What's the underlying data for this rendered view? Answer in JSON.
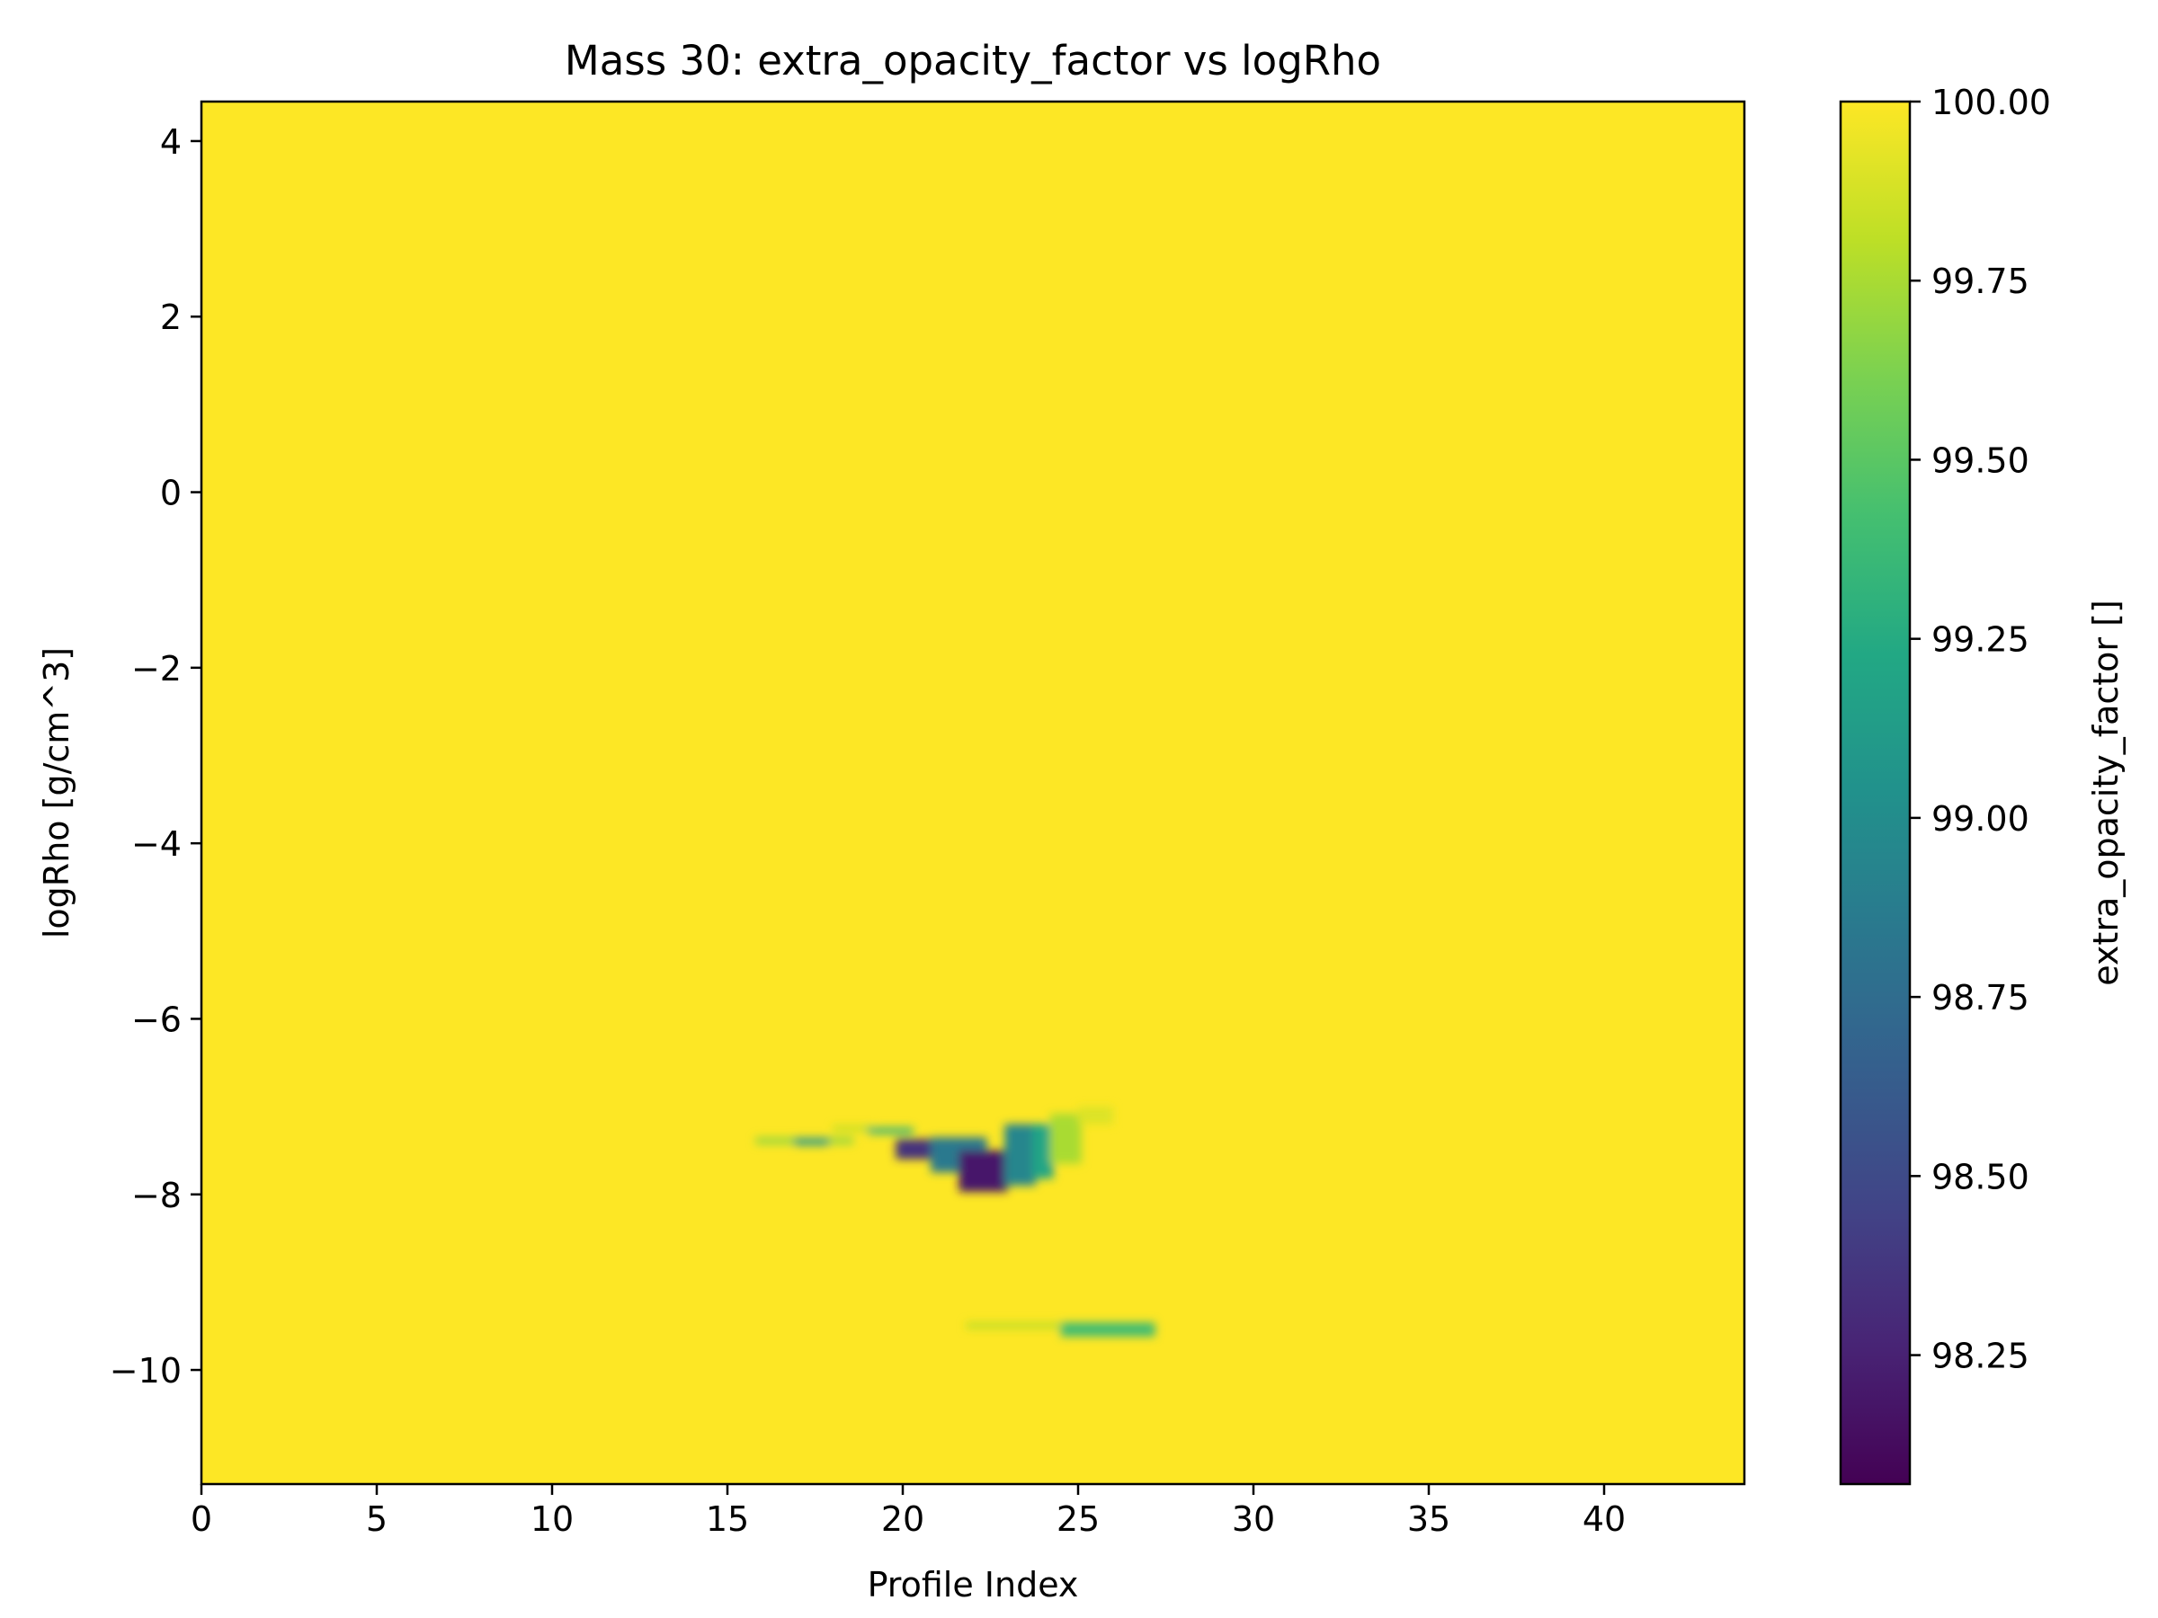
{
  "chart_data": {
    "type": "heatmap",
    "title": "Mass 30: extra_opacity_factor vs logRho",
    "xlabel": "Profile Index",
    "ylabel": "logRho [g/cm^3]",
    "xlim": [
      0,
      44
    ],
    "ylim": [
      -11.3,
      4.45
    ],
    "x_ticks": [
      0,
      5,
      10,
      15,
      20,
      25,
      30,
      35,
      40
    ],
    "y_ticks": [
      4,
      2,
      0,
      -2,
      -4,
      -6,
      -8,
      -10
    ],
    "y_tick_labels": [
      "4",
      "2",
      "0",
      "−2",
      "−4",
      "−6",
      "−8",
      "−10"
    ],
    "grid": false,
    "colormap": "viridis",
    "colorbar": {
      "label": "extra_opacity_factor []",
      "range": [
        98.07,
        100.0
      ],
      "ticks": [
        100.0,
        99.75,
        99.5,
        99.25,
        99.0,
        98.75,
        98.5,
        98.25
      ],
      "tick_labels": [
        "100.00",
        "99.75",
        "99.50",
        "99.25",
        "99.00",
        "98.75",
        "98.50",
        "98.25"
      ]
    },
    "background_value": 100.0,
    "features": [
      {
        "x": [
          15.8,
          18.6
        ],
        "y": [
          -7.43,
          -7.35
        ],
        "value": 99.7
      },
      {
        "x": [
          16.9,
          17.9
        ],
        "y": [
          -7.44,
          -7.36
        ],
        "value": 99.1
      },
      {
        "x": [
          18.0,
          19.2
        ],
        "y": [
          -7.28,
          -7.22
        ],
        "value": 99.8
      },
      {
        "x": [
          19.0,
          20.3
        ],
        "y": [
          -7.31,
          -7.24
        ],
        "value": 99.3
      },
      {
        "x": [
          19.8,
          21.0
        ],
        "y": [
          -7.6,
          -7.37
        ],
        "value": 98.35
      },
      {
        "x": [
          20.8,
          22.4
        ],
        "y": [
          -7.75,
          -7.35
        ],
        "value": 98.85
      },
      {
        "x": [
          21.6,
          23.0
        ],
        "y": [
          -7.97,
          -7.5
        ],
        "value": 98.2
      },
      {
        "x": [
          22.9,
          23.8
        ],
        "y": [
          -7.9,
          -7.2
        ],
        "value": 98.95
      },
      {
        "x": [
          23.7,
          24.3
        ],
        "y": [
          -7.82,
          -7.2
        ],
        "value": 99.2
      },
      {
        "x": [
          24.2,
          25.1
        ],
        "y": [
          -7.65,
          -7.08
        ],
        "value": 99.75
      },
      {
        "x": [
          25.0,
          26.0
        ],
        "y": [
          -7.2,
          -7.0
        ],
        "value": 99.9
      },
      {
        "x": [
          21.8,
          24.6
        ],
        "y": [
          -9.53,
          -9.46
        ],
        "value": 99.8
      },
      {
        "x": [
          24.5,
          27.2
        ],
        "y": [
          -9.62,
          -9.46
        ],
        "value": 99.4
      }
    ]
  }
}
